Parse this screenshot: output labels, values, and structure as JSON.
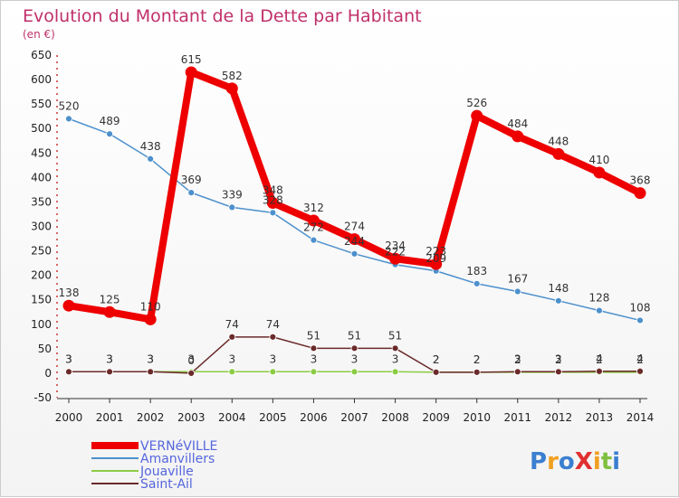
{
  "chart_data": {
    "type": "line",
    "title": "Evolution du Montant de la Dette par Habitant",
    "subtitle": "(en €)",
    "x": [
      "2000",
      "2001",
      "2002",
      "2003",
      "2004",
      "2005",
      "2006",
      "2007",
      "2008",
      "2009",
      "2010",
      "2011",
      "2012",
      "2013",
      "2014"
    ],
    "ylim": [
      -50,
      650
    ],
    "yticks": [
      -50,
      0,
      50,
      100,
      150,
      200,
      250,
      300,
      350,
      400,
      450,
      500,
      550,
      600,
      650
    ],
    "grid": false,
    "legend_position": "bottom-left",
    "series": [
      {
        "name": "VERNéVILLE",
        "color": "#ee0000",
        "values": [
          138,
          125,
          110,
          615,
          582,
          348,
          312,
          274,
          234,
          223,
          526,
          484,
          448,
          410,
          368
        ]
      },
      {
        "name": "Amanvillers",
        "color": "#4d90cc",
        "values": [
          520,
          489,
          438,
          369,
          339,
          328,
          272,
          244,
          222,
          209,
          183,
          167,
          148,
          128,
          108
        ]
      },
      {
        "name": "Jouaville",
        "color": "#8ccc44",
        "values": [
          3,
          3,
          3,
          3,
          3,
          3,
          3,
          3,
          3,
          2,
          2,
          2,
          2,
          2,
          2
        ]
      },
      {
        "name": "Saint-Ail",
        "color": "#6b2a2a",
        "values": [
          3,
          3,
          3,
          0,
          74,
          74,
          51,
          51,
          51,
          2,
          2,
          3,
          3,
          4,
          4
        ]
      }
    ]
  },
  "brand": {
    "logo_text": "ProXiti"
  }
}
